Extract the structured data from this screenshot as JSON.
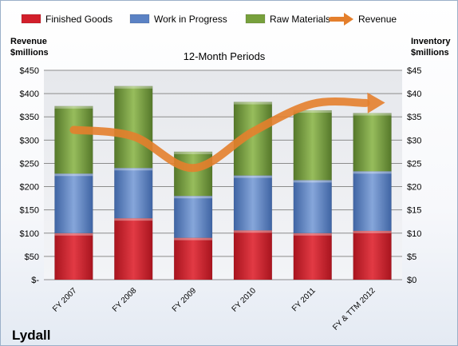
{
  "chart_data": {
    "type": "bar",
    "stacked": true,
    "title": "12-Month Periods",
    "company": "Lydall",
    "categories": [
      "FY 2007",
      "FY 2008",
      "FY 2009",
      "FY 2010",
      "FY 2011",
      "FY & TTM 2012"
    ],
    "series": [
      {
        "name": "Finished Goods",
        "values": [
          10,
          13.2,
          9,
          10.6,
          10,
          10.5
        ],
        "color": "#d21f2b",
        "axis": "inventory"
      },
      {
        "name": "Work in Progress",
        "values": [
          12.8,
          10.8,
          9,
          11.8,
          11.4,
          12.8
        ],
        "color": "#5b82c4",
        "axis": "inventory"
      },
      {
        "name": "Raw Materials",
        "values": [
          14.5,
          17.6,
          9.5,
          15.8,
          15,
          12.5
        ],
        "color": "#77a03c",
        "axis": "inventory"
      }
    ],
    "line_series": {
      "name": "Revenue",
      "values": [
        322,
        308,
        240,
        318,
        378,
        380
      ],
      "color": "#e47f2c",
      "axis": "revenue"
    },
    "left_axis": {
      "title_line1": "Revenue",
      "title_line2": "$millions",
      "ylim": [
        0,
        450
      ],
      "ticks": [
        0,
        50,
        100,
        150,
        200,
        250,
        300,
        350,
        400,
        450
      ],
      "tick_labels": [
        "$-",
        "$50",
        "$100",
        "$150",
        "$200",
        "$250",
        "$300",
        "$350",
        "$400",
        "$450"
      ]
    },
    "right_axis": {
      "title_line1": "Inventory",
      "title_line2": "$millions",
      "ylim": [
        0,
        45
      ],
      "ticks": [
        0,
        5,
        10,
        15,
        20,
        25,
        30,
        35,
        40,
        45
      ],
      "tick_labels": [
        "$0",
        "$5",
        "$10",
        "$15",
        "$20",
        "$25",
        "$30",
        "$35",
        "$40",
        "$45"
      ]
    },
    "grid": true,
    "legend_position": "top"
  }
}
